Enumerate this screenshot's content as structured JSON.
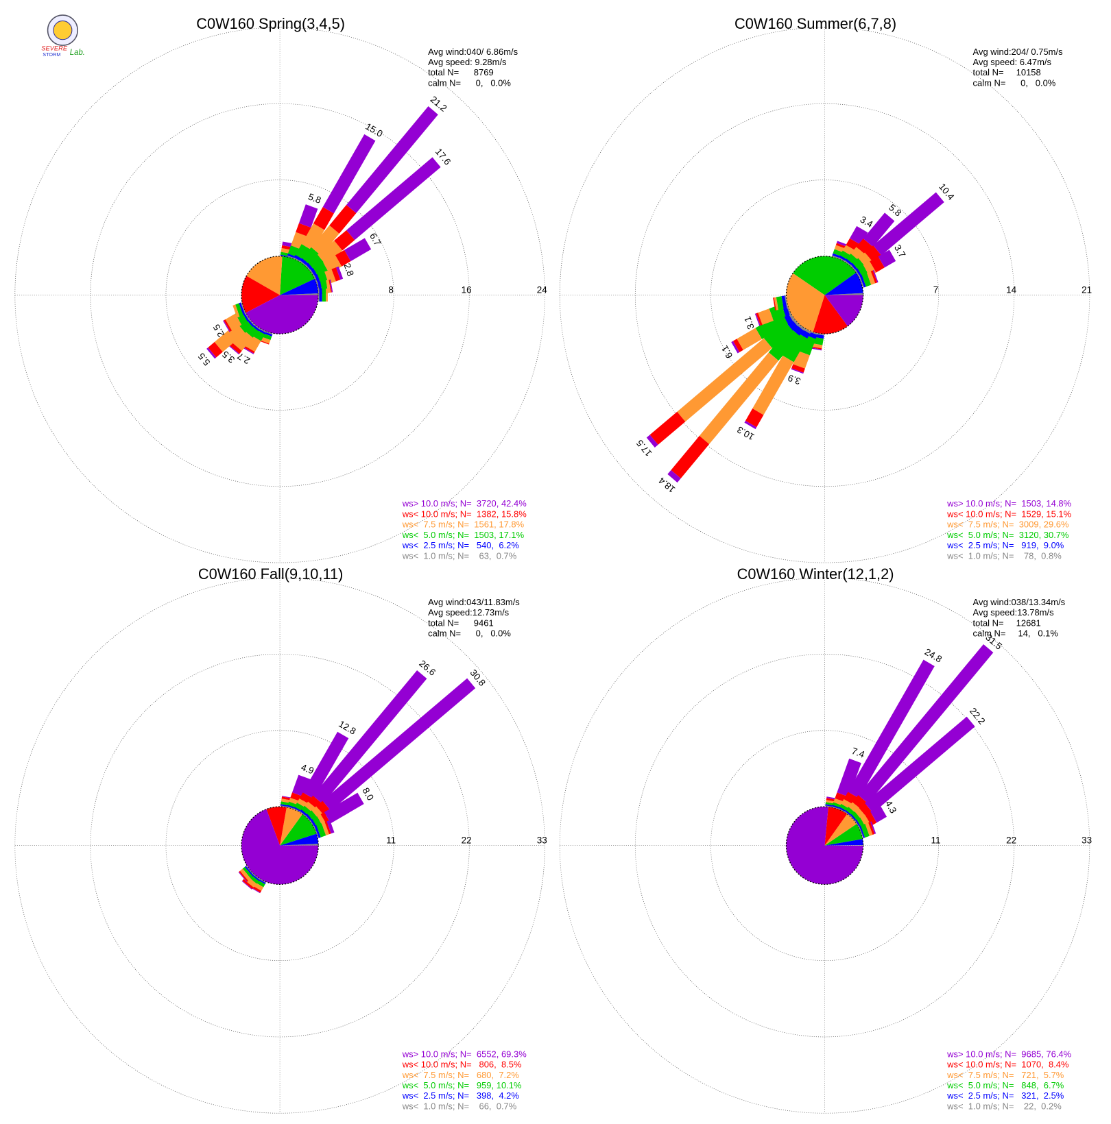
{
  "logo": [
    "SEVERE",
    "STORM",
    "Lab."
  ],
  "chart_data": [
    {
      "type": "windrose",
      "title": "C0W160 Spring(3,4,5)",
      "stats": [
        "Avg wind:040/ 6.86m/s",
        "Avg speed: 9.28m/s",
        "total N=      8769",
        "calm N=      0,   0.0%"
      ],
      "rlim": [
        0,
        24
      ],
      "rticks": [
        8,
        16,
        24
      ],
      "directions": [
        10,
        20,
        30,
        40,
        50,
        60,
        70,
        80,
        90,
        200,
        210,
        220,
        230,
        240,
        250
      ],
      "totals": [
        null,
        5.8,
        15.0,
        21.2,
        17.6,
        6.7,
        2.8,
        null,
        null,
        null,
        2.7,
        3.5,
        5.5,
        2.5,
        null
      ],
      "total_labels": [
        null,
        "5.8",
        "15.0",
        "21.2",
        "17.6",
        "6.7",
        "2.8",
        null,
        null,
        null,
        "2.7",
        "3.5",
        "5.5",
        "2.5",
        null
      ],
      "series": [
        {
          "name": "ws> 10.0 m/s; N=  3720, 42.4%",
          "color": "#9400d3",
          "share": 42.4,
          "values": [
            0.4,
            2.1,
            8.8,
            13.5,
            11.9,
            2.5,
            0.3,
            0.1,
            0,
            0,
            0.1,
            0.1,
            0.2,
            0.1,
            0
          ]
        },
        {
          "name": "ws< 10.0 m/s; N=  1382, 15.8%",
          "color": "#ff0000",
          "share": 15.8,
          "values": [
            0.3,
            1.0,
            2.0,
            2.8,
            1.7,
            1.1,
            0.5,
            0.1,
            0,
            0.1,
            0.2,
            0.4,
            0.9,
            0.2,
            0
          ]
        },
        {
          "name": "ws<  7.5 m/s; N=  1561, 17.8%",
          "color": "#ff9933",
          "share": 17.8,
          "values": [
            0.4,
            1.5,
            2.5,
            3.0,
            2.3,
            1.5,
            0.8,
            0.3,
            0.2,
            0.4,
            1.3,
            1.8,
            3.1,
            1.2,
            0.3
          ]
        },
        {
          "name": "ws<  5.0 m/s; N=  1503, 17.1%",
          "color": "#00cc00",
          "share": 17.1,
          "values": [
            0.3,
            0.9,
            1.3,
            1.5,
            1.3,
            1.2,
            0.8,
            0.6,
            0.4,
            0.4,
            0.8,
            0.9,
            1.0,
            0.7,
            0.4
          ]
        },
        {
          "name": "ws<  2.5 m/s; N=   540,  6.2%",
          "color": "#0000ff",
          "share": 6.2,
          "values": [
            0.1,
            0.2,
            0.3,
            0.3,
            0.3,
            0.3,
            0.3,
            0.3,
            0.3,
            0.2,
            0.2,
            0.2,
            0.2,
            0.2,
            0.2
          ]
        },
        {
          "name": "ws<  1.0 m/s; N=    63,  0.7%",
          "color": "#888888",
          "share": 0.7,
          "values": [
            0,
            0.1,
            0.1,
            0.1,
            0.1,
            0.1,
            0.1,
            0.1,
            0.1,
            0.1,
            0.1,
            0.1,
            0.1,
            0.1,
            0.1
          ]
        }
      ]
    },
    {
      "type": "windrose",
      "title": "C0W160 Summer(6,7,8)",
      "stats": [
        "Avg wind:204/ 0.75m/s",
        "Avg speed: 6.47m/s",
        "total N=     10158",
        "calm N=      0,   0.0%"
      ],
      "rlim": [
        0,
        21
      ],
      "rticks": [
        7,
        14,
        21
      ],
      "directions": [
        20,
        30,
        40,
        50,
        60,
        70,
        190,
        200,
        210,
        220,
        230,
        240,
        250,
        260
      ],
      "totals": [
        null,
        3.4,
        5.8,
        10.4,
        3.7,
        null,
        null,
        3.9,
        10.3,
        18.4,
        17.5,
        6.1,
        3.1,
        null
      ],
      "total_labels": [
        null,
        "3.4",
        "5.8",
        "10.4",
        "3.7",
        null,
        null,
        "3.9",
        "10.3",
        "18.4",
        "17.5",
        "6.1",
        "3.1",
        null
      ],
      "series": [
        {
          "name": "ws> 10.0 m/s; N=  1503, 14.8%",
          "color": "#9400d3",
          "share": 14.8,
          "values": [
            0.2,
            1.3,
            3.1,
            7.6,
            1.2,
            0.1,
            0.1,
            0.1,
            0.2,
            0.5,
            0.4,
            0.2,
            0.1,
            0
          ]
        },
        {
          "name": "ws< 10.0 m/s; N=  1529, 15.1%",
          "color": "#ff0000",
          "share": 15.1,
          "values": [
            0.2,
            0.7,
            1.0,
            1.0,
            0.9,
            0.2,
            0.1,
            0.4,
            1.3,
            4.1,
            3.3,
            0.4,
            0.2,
            0.1
          ]
        },
        {
          "name": "ws<  7.5 m/s; N=  3009, 29.6%",
          "color": "#ff9933",
          "share": 29.6,
          "values": [
            0.4,
            0.6,
            0.8,
            0.8,
            0.7,
            0.4,
            0.3,
            1.3,
            5.6,
            10.0,
            10.5,
            2.0,
            1.1,
            0.2
          ]
        },
        {
          "name": "ws<  5.0 m/s; N=  3120, 30.7%",
          "color": "#00cc00",
          "share": 30.7,
          "values": [
            0.4,
            0.5,
            0.6,
            0.7,
            0.6,
            0.5,
            0.6,
            1.6,
            2.5,
            3.0,
            2.5,
            2.8,
            1.2,
            0.5
          ]
        },
        {
          "name": "ws<  2.5 m/s; N=   919,  9.0%",
          "color": "#0000ff",
          "share": 9.0,
          "values": [
            0.2,
            0.2,
            0.2,
            0.2,
            0.2,
            0.2,
            0.3,
            0.4,
            0.5,
            0.6,
            0.6,
            0.5,
            0.4,
            0.3
          ]
        },
        {
          "name": "ws<  1.0 m/s; N=    78,  0.8%",
          "color": "#888888",
          "share": 0.8,
          "values": [
            0.1,
            0.1,
            0.1,
            0.1,
            0.1,
            0.1,
            0.1,
            0.1,
            0.2,
            0.2,
            0.2,
            0.2,
            0.1,
            0.1
          ]
        }
      ]
    },
    {
      "type": "windrose",
      "title": "C0W160 Fall(9,10,11)",
      "stats": [
        "Avg wind:043/11.83m/s",
        "Avg speed:12.73m/s",
        "total N=      9461",
        "calm N=      0,   0.0%"
      ],
      "rlim": [
        0,
        33
      ],
      "rticks": [
        11,
        22,
        33
      ],
      "directions": [
        10,
        20,
        30,
        40,
        50,
        60,
        70,
        210,
        220,
        230
      ],
      "totals": [
        null,
        4.9,
        12.8,
        26.6,
        30.8,
        8.0,
        null,
        null,
        null,
        null
      ],
      "total_labels": [
        null,
        "4.9",
        "12.8",
        "26.6",
        "30.8",
        "8.0",
        null,
        null,
        null,
        null
      ],
      "series": [
        {
          "name": "ws> 10.0 m/s; N=  6552, 69.3%",
          "color": "#9400d3",
          "share": 69.3,
          "values": [
            0.1,
            2.7,
            10.1,
            23.6,
            27.5,
            5.6,
            0.5,
            0.1,
            0.1,
            0.1
          ]
        },
        {
          "name": "ws< 10.0 m/s; N=   806,  8.5%",
          "color": "#ff0000",
          "share": 8.5,
          "values": [
            0.3,
            0.8,
            1.0,
            1.1,
            1.2,
            0.6,
            0.3,
            0.3,
            0.3,
            0.2
          ]
        },
        {
          "name": "ws<  7.5 m/s; N=   680,  7.2%",
          "color": "#ff9933",
          "share": 7.2,
          "values": [
            0.4,
            0.6,
            0.7,
            0.8,
            0.9,
            0.6,
            0.5,
            0.6,
            0.7,
            0.5
          ]
        },
        {
          "name": "ws<  5.0 m/s; N=   959, 10.1%",
          "color": "#00cc00",
          "share": 10.1,
          "values": [
            0.4,
            0.5,
            0.7,
            0.7,
            0.8,
            0.8,
            0.8,
            0.5,
            0.5,
            0.4
          ]
        },
        {
          "name": "ws<  2.5 m/s; N=   398,  4.2%",
          "color": "#0000ff",
          "share": 4.2,
          "values": [
            0.2,
            0.2,
            0.2,
            0.3,
            0.3,
            0.3,
            0.3,
            0.2,
            0.2,
            0.2
          ]
        },
        {
          "name": "ws<  1.0 m/s; N=    66,  0.7%",
          "color": "#888888",
          "share": 0.7,
          "values": [
            0.1,
            0.1,
            0.1,
            0.1,
            0.1,
            0.1,
            0.1,
            0.1,
            0.1,
            0.1
          ]
        }
      ]
    },
    {
      "type": "windrose",
      "title": "C0W160 Winter(12,1,2)",
      "stats": [
        "Avg wind:038/13.34m/s",
        "Avg speed:13.78m/s",
        "total N=     12681",
        "calm N=     14,   0.1%"
      ],
      "rlim": [
        0,
        33
      ],
      "rticks": [
        11,
        22,
        33
      ],
      "directions": [
        10,
        20,
        30,
        40,
        50,
        60,
        70
      ],
      "totals": [
        null,
        7.4,
        24.8,
        31.5,
        22.2,
        4.3,
        null
      ],
      "total_labels": [
        null,
        "7.4",
        "24.8",
        "31.5",
        "22.2",
        "4.3",
        null
      ],
      "series": [
        {
          "name": "ws> 10.0 m/s; N=  9685, 76.4%",
          "color": "#9400d3",
          "share": 76.4,
          "values": [
            0.2,
            5.2,
            22.0,
            28.4,
            19.4,
            1.7,
            0.2
          ]
        },
        {
          "name": "ws< 10.0 m/s; N=  1070,  8.4%",
          "color": "#ff0000",
          "share": 8.4,
          "values": [
            0.3,
            0.9,
            1.2,
            1.3,
            1.1,
            0.9,
            0.3
          ]
        },
        {
          "name": "ws<  7.5 m/s; N=   721,  5.7%",
          "color": "#ff9933",
          "share": 5.7,
          "values": [
            0.3,
            0.6,
            0.8,
            0.9,
            0.8,
            0.8,
            0.5
          ]
        },
        {
          "name": "ws<  5.0 m/s; N=   848,  6.7%",
          "color": "#00cc00",
          "share": 6.7,
          "values": [
            0.3,
            0.4,
            0.5,
            0.6,
            0.6,
            0.6,
            0.7
          ]
        },
        {
          "name": "ws<  2.5 m/s; N=   321,  2.5%",
          "color": "#0000ff",
          "share": 2.5,
          "values": [
            0.2,
            0.2,
            0.2,
            0.2,
            0.2,
            0.2,
            0.2
          ]
        },
        {
          "name": "ws<  1.0 m/s; N=    22,  0.2%",
          "color": "#888888",
          "share": 0.2,
          "values": [
            0.1,
            0.1,
            0.1,
            0.1,
            0.1,
            0.1,
            0.1
          ]
        }
      ]
    }
  ]
}
